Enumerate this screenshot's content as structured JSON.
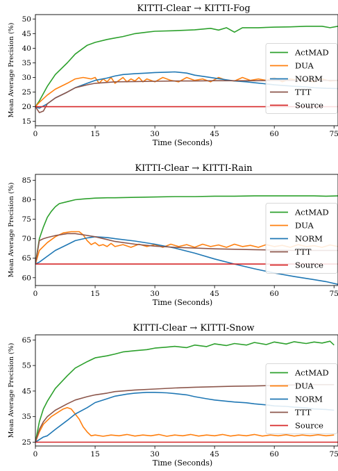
{
  "colors": {
    "ActMAD": "#2ca02c",
    "DUA": "#ff7f0e",
    "NORM": "#1f77b4",
    "TTT": "#8c564b",
    "Source": "#d62728"
  },
  "chart_data": [
    {
      "type": "line",
      "title": "KITTI-Clear → KITTI-Fog",
      "xlabel": "Time (Seconds)",
      "ylabel": "Mean Average Precision (%)",
      "xlim": [
        0,
        76
      ],
      "ylim": [
        13.5,
        51.5
      ],
      "xticks": [
        0,
        15,
        30,
        45,
        60,
        75
      ],
      "xtick_labels": [
        "0",
        "15",
        "30",
        "45",
        "60",
        "75"
      ],
      "yticks": [
        15,
        20,
        25,
        30,
        35,
        40,
        45,
        50
      ],
      "ytick_labels": [
        "15",
        "20",
        "25",
        "30",
        "35",
        "40",
        "45",
        "50"
      ],
      "grid": false,
      "legend_position": "right",
      "series": [
        {
          "name": "ActMAD",
          "x": [
            0,
            1,
            3,
            5,
            8,
            10,
            13,
            15,
            18,
            20,
            22,
            25,
            28,
            30,
            35,
            40,
            44,
            46,
            48,
            50,
            52,
            56,
            60,
            64,
            68,
            72,
            74,
            76
          ],
          "y": [
            20,
            22,
            27,
            31,
            35,
            38,
            41,
            42,
            43,
            43.5,
            44,
            45,
            45.5,
            45.8,
            46,
            46.3,
            46.8,
            46.2,
            47,
            45.5,
            47,
            47,
            47.2,
            47.3,
            47.5,
            47.5,
            47,
            47.5
          ]
        },
        {
          "name": "DUA",
          "x": [
            0,
            1,
            3,
            5,
            8,
            10,
            12,
            14,
            15,
            16,
            17,
            18,
            19,
            20,
            21,
            22,
            23,
            24,
            25,
            26,
            27,
            28,
            30,
            32,
            34,
            36,
            38,
            40,
            42,
            44,
            46,
            48,
            50,
            52,
            54,
            56,
            58,
            60,
            62,
            64,
            66,
            68,
            70,
            72,
            74,
            76
          ],
          "y": [
            20,
            21.5,
            24,
            26,
            28,
            29.5,
            30,
            29.5,
            30,
            28,
            29.5,
            28.5,
            30,
            28,
            29,
            30,
            28.5,
            29.5,
            28.8,
            30,
            28.5,
            29.5,
            28.5,
            30,
            29,
            28.5,
            30,
            29,
            29.5,
            28.5,
            30,
            29,
            28.8,
            30,
            29,
            29.5,
            29,
            30,
            28.5,
            29.5,
            29,
            29,
            28.5,
            29.5,
            28.8,
            29
          ]
        },
        {
          "name": "NORM",
          "x": [
            0,
            1,
            3,
            5,
            8,
            10,
            13,
            15,
            18,
            20,
            22,
            25,
            28,
            30,
            33,
            35,
            38,
            40,
            43,
            45,
            48,
            50,
            53,
            55,
            58,
            60,
            62,
            65,
            68,
            70,
            73,
            76
          ],
          "y": [
            20,
            19.5,
            21,
            23,
            25,
            26.5,
            28,
            29,
            29.8,
            30.5,
            31,
            31.3,
            31.5,
            31.7,
            31.8,
            31.9,
            31.5,
            30.8,
            30.2,
            29.8,
            29.2,
            28.8,
            28.5,
            28.2,
            27.8,
            27.5,
            27.3,
            27,
            26.8,
            26.5,
            26.3,
            26.2
          ]
        },
        {
          "name": "TTT",
          "x": [
            0,
            1,
            2,
            3,
            5,
            8,
            10,
            13,
            15,
            18,
            20,
            25,
            30,
            35,
            40,
            45,
            50,
            55,
            60,
            65,
            70,
            76
          ],
          "y": [
            20,
            18,
            18.5,
            21,
            23,
            25,
            26.5,
            27.5,
            28,
            28.3,
            28.5,
            28.6,
            28.7,
            28.8,
            28.8,
            28.9,
            28.9,
            28.9,
            29,
            29,
            29,
            29
          ]
        },
        {
          "name": "Source",
          "x": [
            0,
            76
          ],
          "y": [
            20,
            20
          ]
        }
      ]
    },
    {
      "type": "line",
      "title": "KITTI-Clear → KITTI-Rain",
      "xlabel": "Time (Seconds)",
      "ylabel": "Mean Average Precision (%)",
      "xlim": [
        0,
        76
      ],
      "ylim": [
        58,
        86.5
      ],
      "xticks": [
        0,
        15,
        30,
        45,
        60,
        75
      ],
      "xtick_labels": [
        "0",
        "15",
        "30",
        "45",
        "60",
        "75"
      ],
      "yticks": [
        60,
        65,
        70,
        75,
        80,
        85
      ],
      "ytick_labels": [
        "60",
        "65",
        "70",
        "75",
        "80",
        "85"
      ],
      "grid": false,
      "legend_position": "right",
      "series": [
        {
          "name": "ActMAD",
          "x": [
            0,
            1,
            2,
            3,
            4,
            5,
            6,
            8,
            10,
            12,
            15,
            18,
            20,
            25,
            30,
            35,
            40,
            45,
            50,
            55,
            60,
            65,
            70,
            73,
            76
          ],
          "y": [
            63.5,
            70,
            73,
            75.5,
            77,
            78.2,
            79,
            79.5,
            80,
            80.2,
            80.4,
            80.5,
            80.5,
            80.6,
            80.7,
            80.8,
            80.8,
            80.9,
            80.9,
            81,
            81,
            81,
            81,
            80.9,
            81
          ]
        },
        {
          "name": "DUA",
          "x": [
            0,
            1,
            3,
            5,
            7,
            9,
            11,
            12,
            13,
            14,
            15,
            16,
            17,
            18,
            19,
            20,
            22,
            24,
            26,
            28,
            30,
            32,
            34,
            36,
            38,
            40,
            42,
            44,
            46,
            48,
            50,
            52,
            54,
            56,
            58,
            60,
            62,
            64,
            66,
            68,
            70,
            72,
            74,
            76
          ],
          "y": [
            63.5,
            67,
            69,
            70.5,
            71.5,
            71.8,
            71.8,
            71,
            69.5,
            68.5,
            69,
            68.2,
            68.5,
            68,
            68.8,
            68,
            68.5,
            67.8,
            68.6,
            68,
            68.5,
            67.8,
            68.6,
            68,
            68.5,
            67.8,
            68.6,
            68,
            68.4,
            67.8,
            68.6,
            68,
            68.3,
            67.8,
            68.5,
            68,
            68.3,
            67.8,
            68.5,
            68,
            68.2,
            67.8,
            68.4,
            68
          ]
        },
        {
          "name": "NORM",
          "x": [
            0,
            1,
            3,
            5,
            8,
            10,
            13,
            15,
            18,
            20,
            25,
            30,
            35,
            40,
            45,
            50,
            55,
            60,
            65,
            70,
            73,
            76
          ],
          "y": [
            63.5,
            64,
            65.5,
            67,
            68.5,
            69.5,
            70.2,
            70.5,
            70.3,
            70,
            69.4,
            68.6,
            67.6,
            66.3,
            64.8,
            63.5,
            62.3,
            61.2,
            60.3,
            59.5,
            59,
            58.3
          ]
        },
        {
          "name": "TTT",
          "x": [
            0,
            1,
            2,
            3,
            5,
            8,
            10,
            12,
            15,
            18,
            20,
            25,
            30,
            35,
            40,
            45,
            50,
            55,
            60,
            65,
            70,
            76
          ],
          "y": [
            63.5,
            69.5,
            70,
            70.3,
            70.8,
            71.3,
            71.3,
            71,
            70.5,
            69.8,
            69.3,
            68.6,
            68.1,
            67.8,
            67.6,
            67.4,
            67.3,
            67.2,
            67.1,
            67,
            67,
            67
          ]
        },
        {
          "name": "Source",
          "x": [
            0,
            76
          ],
          "y": [
            63.5,
            63.5
          ]
        }
      ]
    },
    {
      "type": "line",
      "title": "KITTI-Clear → KITTI-Snow",
      "xlabel": "Time (Seconds)",
      "ylabel": "Mean Average Precision (%)",
      "xlim": [
        0,
        76
      ],
      "ylim": [
        23.5,
        67
      ],
      "xticks": [
        0,
        15,
        30,
        45,
        60,
        75
      ],
      "xtick_labels": [
        "0",
        "15",
        "30",
        "45",
        "60",
        "75"
      ],
      "yticks": [
        25,
        35,
        45,
        55,
        65
      ],
      "ytick_labels": [
        "25",
        "35",
        "45",
        "55",
        "65"
      ],
      "grid": false,
      "legend_position": "right",
      "series": [
        {
          "name": "ActMAD",
          "x": [
            0,
            1,
            2,
            3,
            5,
            8,
            10,
            13,
            15,
            18,
            20,
            22,
            25,
            28,
            30,
            33,
            35,
            38,
            40,
            43,
            45,
            48,
            50,
            53,
            55,
            58,
            60,
            63,
            65,
            68,
            70,
            72,
            74,
            75
          ],
          "y": [
            25,
            33,
            38,
            41,
            46,
            51,
            54,
            56.5,
            58,
            58.8,
            59.5,
            60.3,
            60.8,
            61.2,
            61.8,
            62.2,
            62.5,
            62,
            63,
            62.4,
            63.5,
            62.8,
            63.6,
            63,
            64,
            63.2,
            64.2,
            63.4,
            64.3,
            63.6,
            64.2,
            63.8,
            64.5,
            63
          ]
        },
        {
          "name": "DUA",
          "x": [
            0,
            1,
            2,
            4,
            6,
            7,
            8,
            9,
            10,
            11,
            12,
            13,
            14,
            15,
            17,
            19,
            21,
            23,
            25,
            27,
            29,
            31,
            33,
            35,
            37,
            39,
            41,
            43,
            45,
            47,
            49,
            51,
            53,
            55,
            57,
            59,
            61,
            63,
            65,
            67,
            69,
            71,
            73,
            75
          ],
          "y": [
            25,
            29,
            32,
            35,
            37,
            38,
            38.5,
            38,
            36,
            34,
            31,
            29,
            27.5,
            27.8,
            27.3,
            27.8,
            27.5,
            28,
            27.4,
            27.8,
            27.5,
            28,
            27.3,
            27.8,
            27.5,
            28,
            27.4,
            27.8,
            27.5,
            28,
            27.4,
            27.8,
            27.5,
            28,
            27.4,
            27.8,
            27.5,
            27.9,
            27.4,
            27.8,
            27.5,
            27.9,
            27.5,
            27.8
          ]
        },
        {
          "name": "NORM",
          "x": [
            0,
            1,
            2,
            3,
            5,
            8,
            10,
            13,
            15,
            18,
            20,
            23,
            25,
            28,
            30,
            33,
            35,
            38,
            40,
            43,
            45,
            48,
            50,
            53,
            55,
            58,
            60,
            63,
            65,
            68,
            70,
            73,
            75
          ],
          "y": [
            25,
            26,
            27,
            27.5,
            30,
            33.5,
            36,
            38.5,
            40.5,
            42,
            43,
            43.8,
            44.2,
            44.5,
            44.5,
            44.3,
            44,
            43.5,
            42.8,
            42,
            41.5,
            41,
            40.7,
            40.4,
            40,
            39.6,
            39.2,
            39,
            38.7,
            38.4,
            38,
            37.8,
            37.5
          ]
        },
        {
          "name": "TTT",
          "x": [
            0,
            1,
            2,
            3,
            5,
            8,
            10,
            13,
            15,
            18,
            20,
            25,
            30,
            35,
            40,
            45,
            50,
            55,
            60,
            65,
            70,
            75
          ],
          "y": [
            25,
            30,
            33,
            35,
            37.5,
            40,
            41.5,
            42.8,
            43.5,
            44.2,
            44.8,
            45.4,
            45.8,
            46.2,
            46.5,
            46.7,
            46.9,
            47,
            47.2,
            47.4,
            47.5,
            47.5
          ]
        },
        {
          "name": "Source",
          "x": [
            0,
            76
          ],
          "y": [
            25,
            25
          ]
        }
      ]
    }
  ]
}
